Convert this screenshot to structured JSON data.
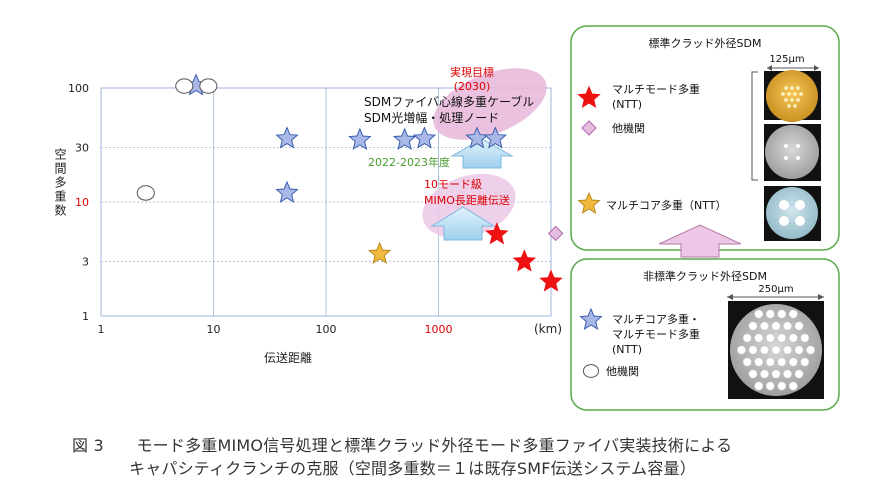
{
  "chart_data": {
    "type": "scatter",
    "xlabel": "伝送距離",
    "x_unit": "(km)",
    "ylabel": "空間多重数",
    "xscale": "log",
    "yscale": "log",
    "xlim": [
      1,
      10000
    ],
    "ylim": [
      1,
      100
    ],
    "xticks": [
      {
        "value": 1,
        "label": "1",
        "color": "#222222"
      },
      {
        "value": 10,
        "label": "10",
        "color": "#222222"
      },
      {
        "value": 100,
        "label": "100",
        "color": "#222222"
      },
      {
        "value": 1000,
        "label": "1000",
        "color": "#dd0000"
      }
    ],
    "yticks": [
      {
        "value": 1,
        "label": "1",
        "color": "#222222"
      },
      {
        "value": 3,
        "label": "3",
        "color": "#222222"
      },
      {
        "value": 10,
        "label": "10",
        "color": "#dd0000"
      },
      {
        "value": 30,
        "label": "30",
        "color": "#222222"
      },
      {
        "value": 100,
        "label": "100",
        "color": "#222222"
      }
    ],
    "grid": true,
    "series": [
      {
        "name": "マルチコア多重・マルチモード多重（NTT）",
        "marker": "star",
        "color": "#aab8e8",
        "stroke": "#3a5fb0",
        "points": [
          [
            7,
            105
          ],
          [
            45,
            36
          ],
          [
            45,
            12
          ],
          [
            200,
            35
          ],
          [
            500,
            35
          ],
          [
            750,
            36
          ],
          [
            2200,
            36
          ],
          [
            3200,
            36
          ]
        ]
      },
      {
        "name": "他機関",
        "marker": "circle",
        "color": "#ffffff",
        "stroke": "#555555",
        "points": [
          [
            2.5,
            12
          ],
          [
            5.5,
            104
          ],
          [
            9,
            104
          ]
        ]
      },
      {
        "name": "マルチモード多重（NTT）",
        "marker": "star",
        "color": "#ee1111",
        "stroke": "#ee1111",
        "points": [
          [
            3300,
            5.2
          ],
          [
            5800,
            3
          ],
          [
            10000,
            2
          ]
        ]
      },
      {
        "name": "他機関",
        "marker": "diamond",
        "color": "#e4bde0",
        "stroke": "#aa66aa",
        "points": [
          [
            11000,
            5.3
          ]
        ]
      },
      {
        "name": "マルチコア多重（NTT）",
        "marker": "star",
        "color": "#f0b83c",
        "stroke": "#b88a20",
        "points": [
          [
            300,
            3.5
          ]
        ]
      }
    ],
    "annotations": {
      "target_title": "実現目標",
      "target_year": "(2030)",
      "target_line1": "SDMファイバ心線多重ケーブル",
      "target_line2": "SDM光増幅・処理ノード",
      "period": "2022-2023年度",
      "tenmode_line1": "10モード級",
      "tenmode_line2": "MIMO長距離伝送"
    }
  },
  "panels": {
    "standard": {
      "title": "標準クラッド外径SDM",
      "dimension": "125μm",
      "legend_mm": "マルチモード多重",
      "legend_mm_org": "(NTT)",
      "legend_other": "他機関",
      "legend_mc": "マルチコア多重（NTT）"
    },
    "nonstandard": {
      "title": "非標準クラッド外径SDM",
      "dimension": "250μm",
      "legend_star_line1": "マルチコア多重・",
      "legend_star_line2": "マルチモード多重",
      "legend_star_org": "(NTT)",
      "legend_other": "他機関"
    }
  },
  "caption": {
    "label": "図 3",
    "line1": "モード多重MIMO信号処理と標準クラッド外径モード多重ファイバ実装技術による",
    "line2": "キャパシティクランチの克服（空間多重数＝１は既存SMF伝送システム容量）"
  },
  "colors": {
    "accent_red": "#dd0000",
    "accent_green": "#4a9a30",
    "panel_border": "#5aaa4a",
    "arrow_blue": "#bfe0f5",
    "arrow_pink": "#ecc8e6",
    "ellipse_pink": "#e6b6d8"
  }
}
